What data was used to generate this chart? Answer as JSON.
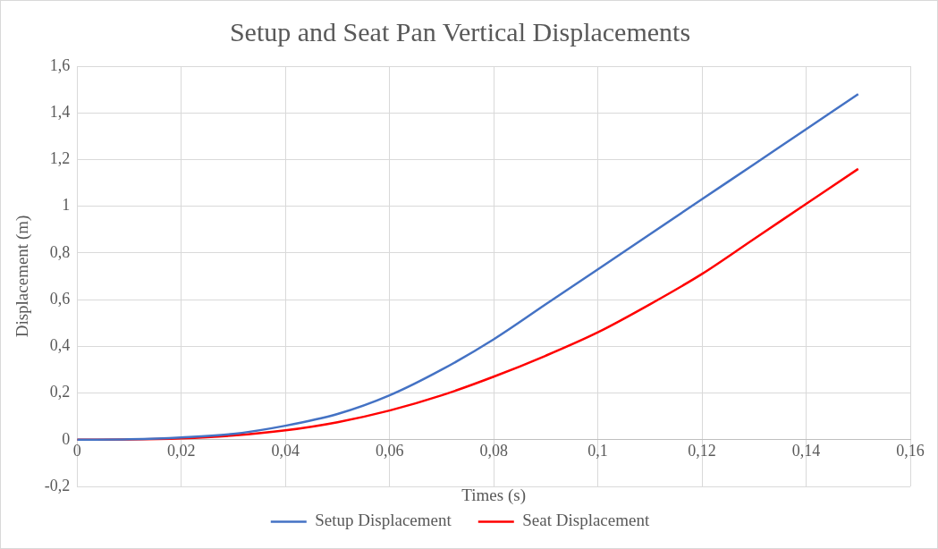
{
  "chart_data": {
    "type": "line",
    "title": "Setup and Seat Pan Vertical Displacements",
    "xlabel": "Times (s)",
    "ylabel": "Displacement (m)",
    "x": [
      0,
      0.01,
      0.02,
      0.03,
      0.04,
      0.05,
      0.06,
      0.07,
      0.08,
      0.09,
      0.1,
      0.11,
      0.12,
      0.13,
      0.14,
      0.15
    ],
    "series": [
      {
        "name": "Setup Displacement",
        "color": "#4472c4",
        "values": [
          0,
          0.002,
          0.01,
          0.025,
          0.06,
          0.11,
          0.19,
          0.3,
          0.43,
          0.58,
          0.73,
          0.88,
          1.03,
          1.18,
          1.33,
          1.48
        ]
      },
      {
        "name": "Seat Displacement",
        "color": "#ff0000",
        "values": [
          0,
          0.001,
          0.006,
          0.018,
          0.04,
          0.075,
          0.125,
          0.19,
          0.27,
          0.36,
          0.46,
          0.58,
          0.71,
          0.86,
          1.01,
          1.16
        ]
      }
    ],
    "xlim": [
      0,
      0.16
    ],
    "xticks": [
      0,
      {
        "value": 0.02,
        "label": "0,02"
      },
      {
        "value": 0.04,
        "label": "0,04"
      },
      {
        "value": 0.06,
        "label": "0,06"
      },
      {
        "value": 0.08,
        "label": "0,08"
      },
      {
        "value": 0.1,
        "label": "0,1"
      },
      {
        "value": 0.12,
        "label": "0,12"
      },
      {
        "value": 0.14,
        "label": "0,14"
      },
      {
        "value": 0.16,
        "label": "0,16"
      }
    ],
    "ylim": [
      -0.2,
      1.6
    ],
    "yticks": [
      {
        "value": -0.2,
        "label": "-0,2"
      },
      0,
      {
        "value": 0.2,
        "label": "0,2"
      },
      {
        "value": 0.4,
        "label": "0,4"
      },
      {
        "value": 0.6,
        "label": "0,6"
      },
      {
        "value": 0.8,
        "label": "0,8"
      },
      1,
      {
        "value": 1.2,
        "label": "1,2"
      },
      {
        "value": 1.4,
        "label": "1,4"
      },
      {
        "value": 1.6,
        "label": "1,6"
      }
    ],
    "grid": true,
    "legend": "bottom",
    "marker": "none",
    "line_style": "solid"
  }
}
